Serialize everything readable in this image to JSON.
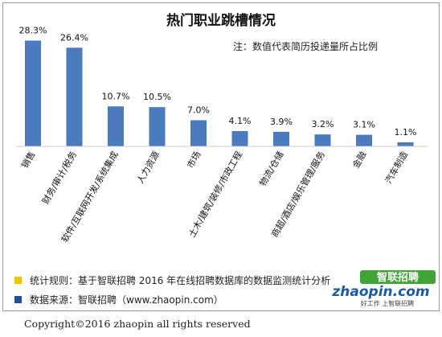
{
  "chart_data": {
    "type": "bar",
    "title": "热门职业跳槽情况",
    "note": "注：数值代表简历投递量所占比例",
    "categories": [
      "销售",
      "财务/审计/税务",
      "软件/互联网开发/系统集成",
      "人力资源",
      "市场",
      "土木/建筑/装修/市政工程",
      "物流/仓储",
      "商超/酒店/娱乐管理/服务",
      "金融",
      "汽车制造"
    ],
    "values": [
      28.3,
      26.4,
      10.7,
      10.5,
      7.0,
      4.1,
      3.9,
      3.2,
      3.1,
      1.1
    ],
    "value_labels": [
      "28.3%",
      "26.4%",
      "10.7%",
      "10.5%",
      "7.0%",
      "4.1%",
      "3.9%",
      "3.2%",
      "3.1%",
      "1.1%"
    ],
    "ylim": [
      0,
      34
    ],
    "bar_color": "#4a7bbf",
    "grid": false
  },
  "legend": [
    {
      "text": "统计规则：基于智联招聘 2016 年在线招聘数据库的数据监测统计分析",
      "color": "#f5c400"
    },
    {
      "text": "数据来源：智联招聘（www.zhaopin.com）",
      "color": "#1f4e9c"
    }
  ],
  "logo": {
    "brand_cn": "智联招聘",
    "brand_en": "zhaopin.com",
    "slogan": "好工作 上智联招聘"
  },
  "footer": "Copyright©2016 zhaopin all rights reserved"
}
